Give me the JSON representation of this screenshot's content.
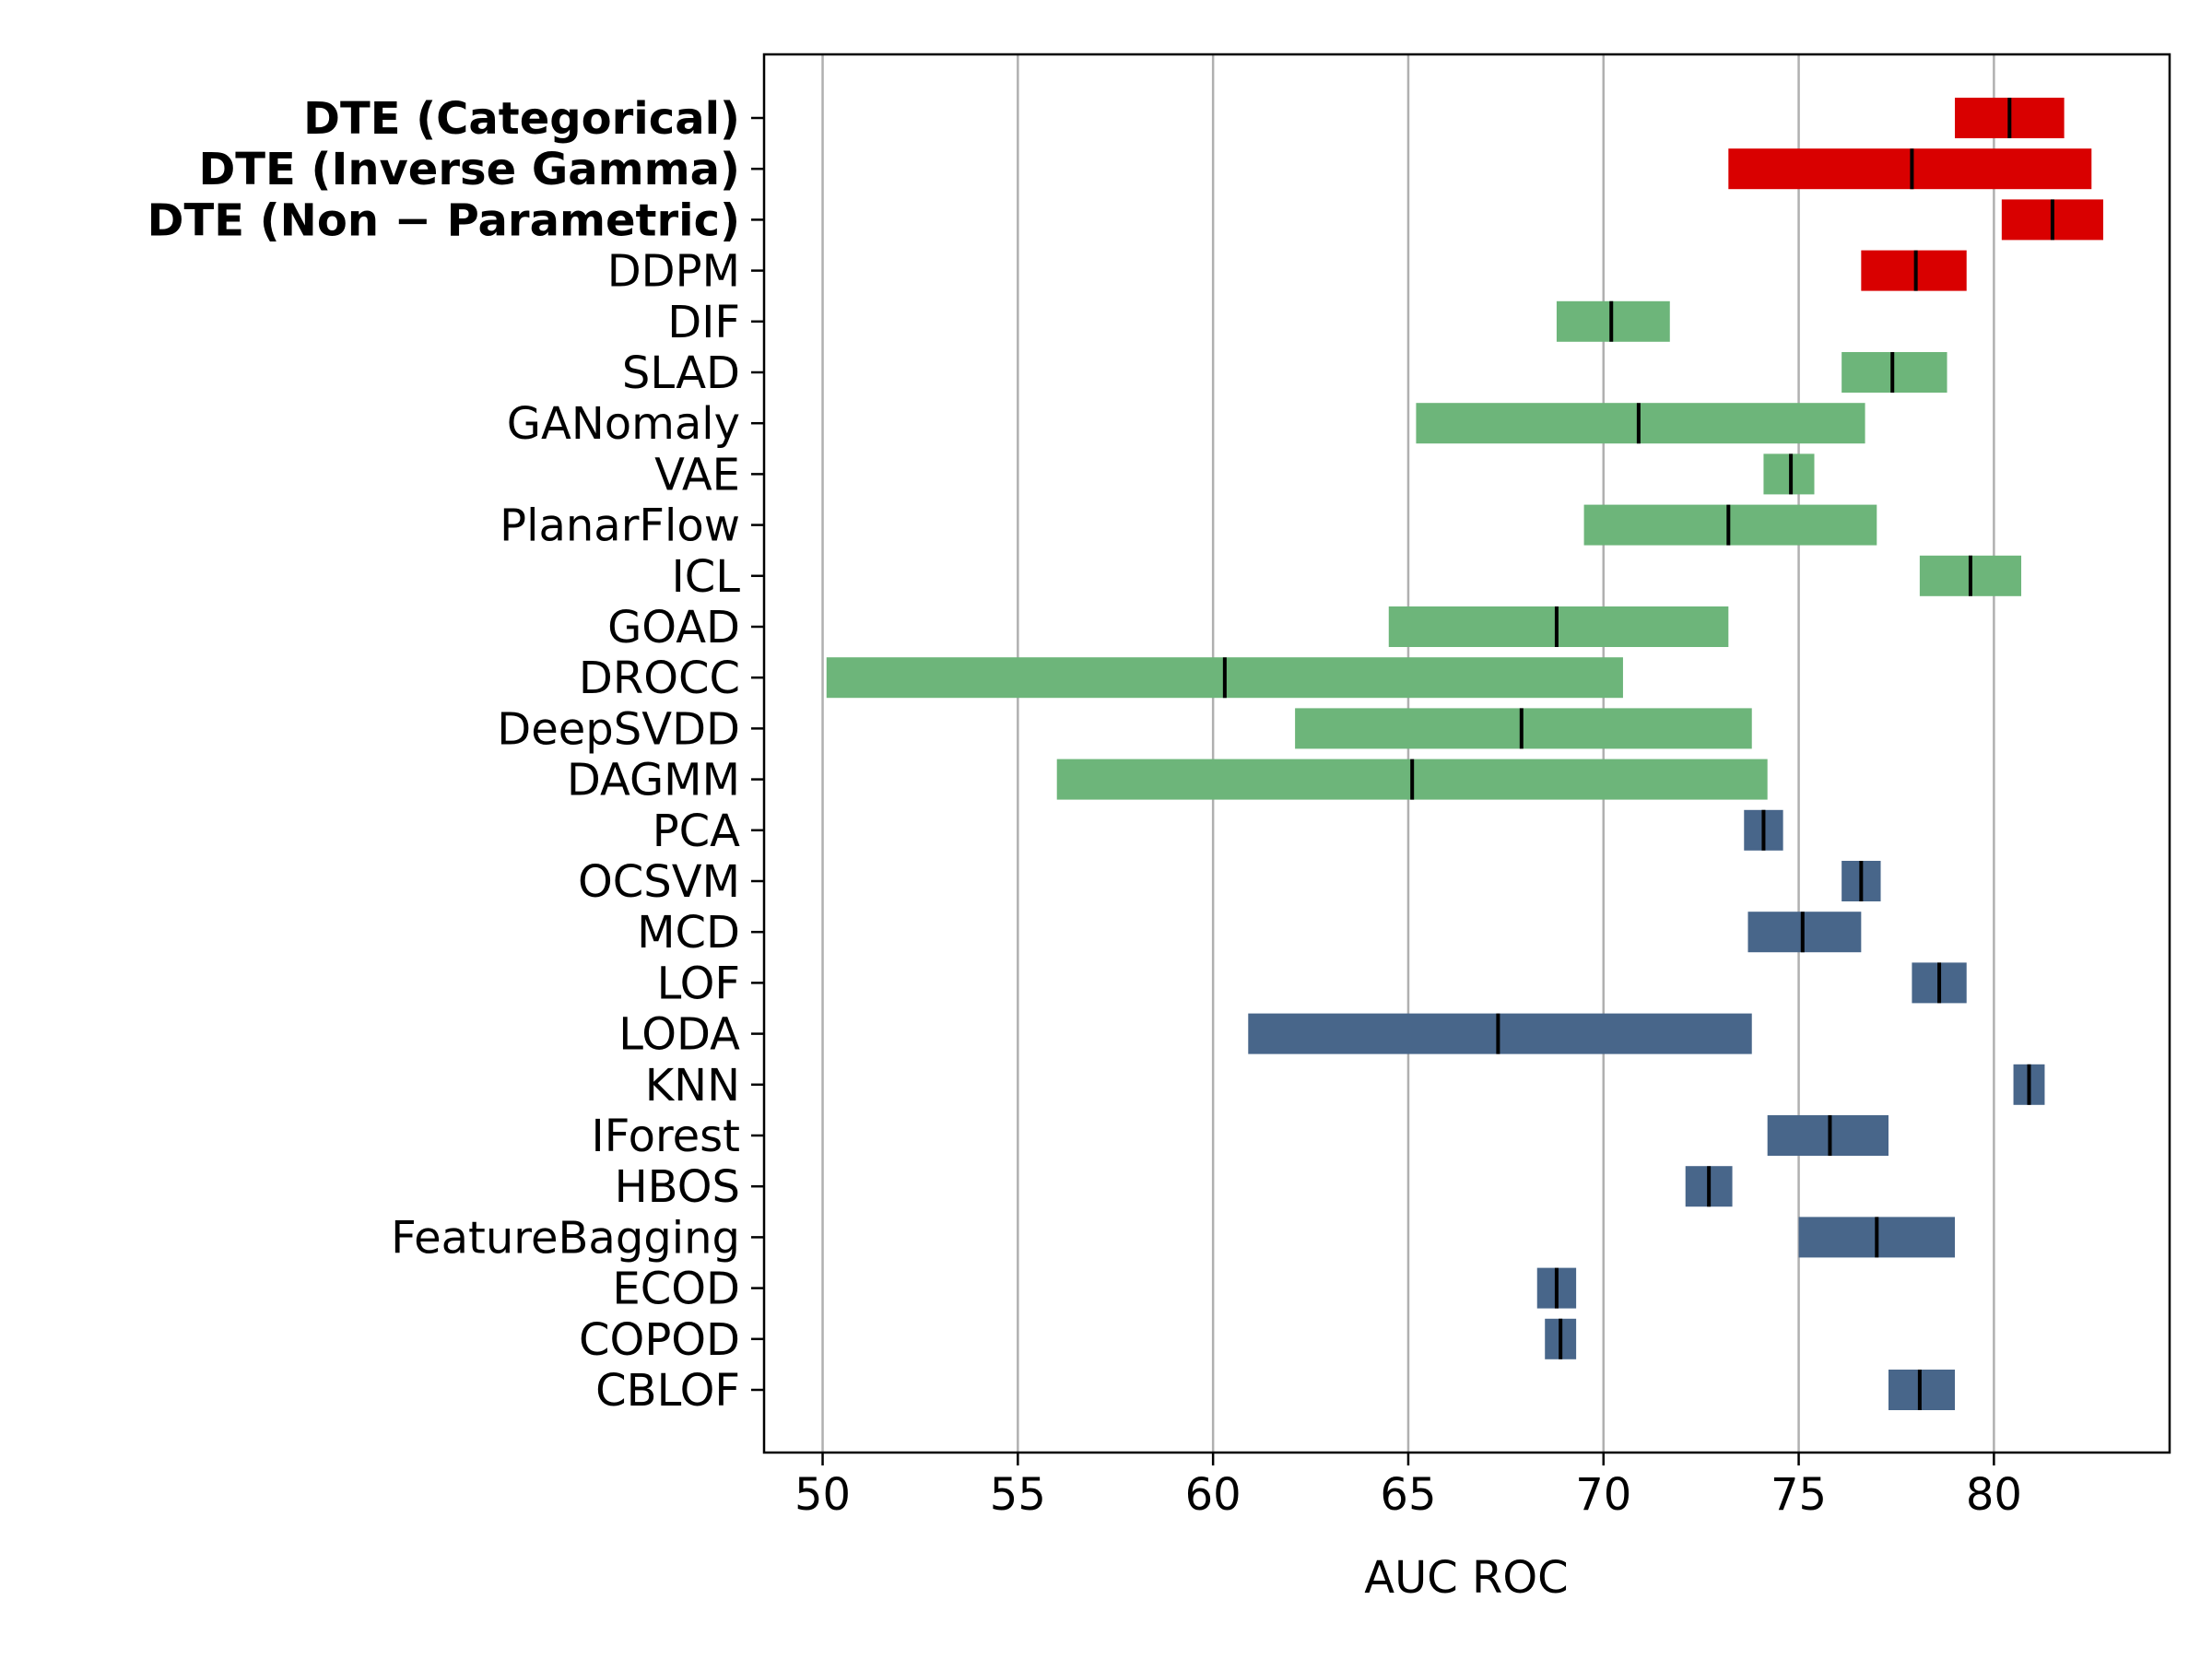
{
  "chart_data": {
    "type": "bar",
    "orientation": "horizontal-range",
    "xlabel": "AUC ROC",
    "xlim": [
      48.5,
      84.5
    ],
    "xticks": [
      50,
      55,
      60,
      65,
      70,
      75,
      80
    ],
    "grid": "x",
    "colors": {
      "dte": "#d90000",
      "deep": "#6db57a",
      "classical": "#48668a",
      "median": "#000000"
    },
    "methods": [
      {
        "label": "DTE (Categorical)",
        "bold": true,
        "group": "dte",
        "low": 79.0,
        "median": 80.4,
        "high": 81.8
      },
      {
        "label": "DTE (Inverse Gamma)",
        "bold": true,
        "group": "dte",
        "low": 73.2,
        "median": 77.9,
        "high": 82.5
      },
      {
        "label": "DTE (Non − Parametric)",
        "bold": true,
        "group": "dte",
        "low": 80.2,
        "median": 81.5,
        "high": 82.8
      },
      {
        "label": "DDPM",
        "bold": false,
        "group": "dte",
        "low": 76.6,
        "median": 78.0,
        "high": 79.3
      },
      {
        "label": "DIF",
        "bold": false,
        "group": "deep",
        "low": 68.8,
        "median": 70.2,
        "high": 71.7
      },
      {
        "label": "SLAD",
        "bold": false,
        "group": "deep",
        "low": 76.1,
        "median": 77.4,
        "high": 78.8
      },
      {
        "label": "GANomaly",
        "bold": false,
        "group": "deep",
        "low": 65.2,
        "median": 70.9,
        "high": 76.7
      },
      {
        "label": "VAE",
        "bold": false,
        "group": "deep",
        "low": 74.1,
        "median": 74.8,
        "high": 75.4
      },
      {
        "label": "PlanarFlow",
        "bold": false,
        "group": "deep",
        "low": 69.5,
        "median": 73.2,
        "high": 77.0
      },
      {
        "label": "ICL",
        "bold": false,
        "group": "deep",
        "low": 78.1,
        "median": 79.4,
        "high": 80.7
      },
      {
        "label": "GOAD",
        "bold": false,
        "group": "deep",
        "low": 64.5,
        "median": 68.8,
        "high": 73.2
      },
      {
        "label": "DROCC",
        "bold": false,
        "group": "deep",
        "low": 50.1,
        "median": 60.3,
        "high": 70.5
      },
      {
        "label": "DeepSVDD",
        "bold": false,
        "group": "deep",
        "low": 62.1,
        "median": 67.9,
        "high": 73.8
      },
      {
        "label": "DAGMM",
        "bold": false,
        "group": "deep",
        "low": 56.0,
        "median": 65.1,
        "high": 74.2
      },
      {
        "label": "PCA",
        "bold": false,
        "group": "classical",
        "low": 73.6,
        "median": 74.1,
        "high": 74.6
      },
      {
        "label": "OCSVM",
        "bold": false,
        "group": "classical",
        "low": 76.1,
        "median": 76.6,
        "high": 77.1
      },
      {
        "label": "MCD",
        "bold": false,
        "group": "classical",
        "low": 73.7,
        "median": 75.1,
        "high": 76.6
      },
      {
        "label": "LOF",
        "bold": false,
        "group": "classical",
        "low": 77.9,
        "median": 78.6,
        "high": 79.3
      },
      {
        "label": "LODA",
        "bold": false,
        "group": "classical",
        "low": 60.9,
        "median": 67.3,
        "high": 73.8
      },
      {
        "label": "KNN",
        "bold": false,
        "group": "classical",
        "low": 80.5,
        "median": 80.9,
        "high": 81.3
      },
      {
        "label": "IForest",
        "bold": false,
        "group": "classical",
        "low": 74.2,
        "median": 75.8,
        "high": 77.3
      },
      {
        "label": "HBOS",
        "bold": false,
        "group": "classical",
        "low": 72.1,
        "median": 72.7,
        "high": 73.3
      },
      {
        "label": "FeatureBagging",
        "bold": false,
        "group": "classical",
        "low": 75.0,
        "median": 77.0,
        "high": 79.0
      },
      {
        "label": "ECOD",
        "bold": false,
        "group": "classical",
        "low": 68.3,
        "median": 68.8,
        "high": 69.3
      },
      {
        "label": "COPOD",
        "bold": false,
        "group": "classical",
        "low": 68.5,
        "median": 68.9,
        "high": 69.3
      },
      {
        "label": "CBLOF",
        "bold": false,
        "group": "classical",
        "low": 77.3,
        "median": 78.1,
        "high": 79.0
      }
    ]
  }
}
